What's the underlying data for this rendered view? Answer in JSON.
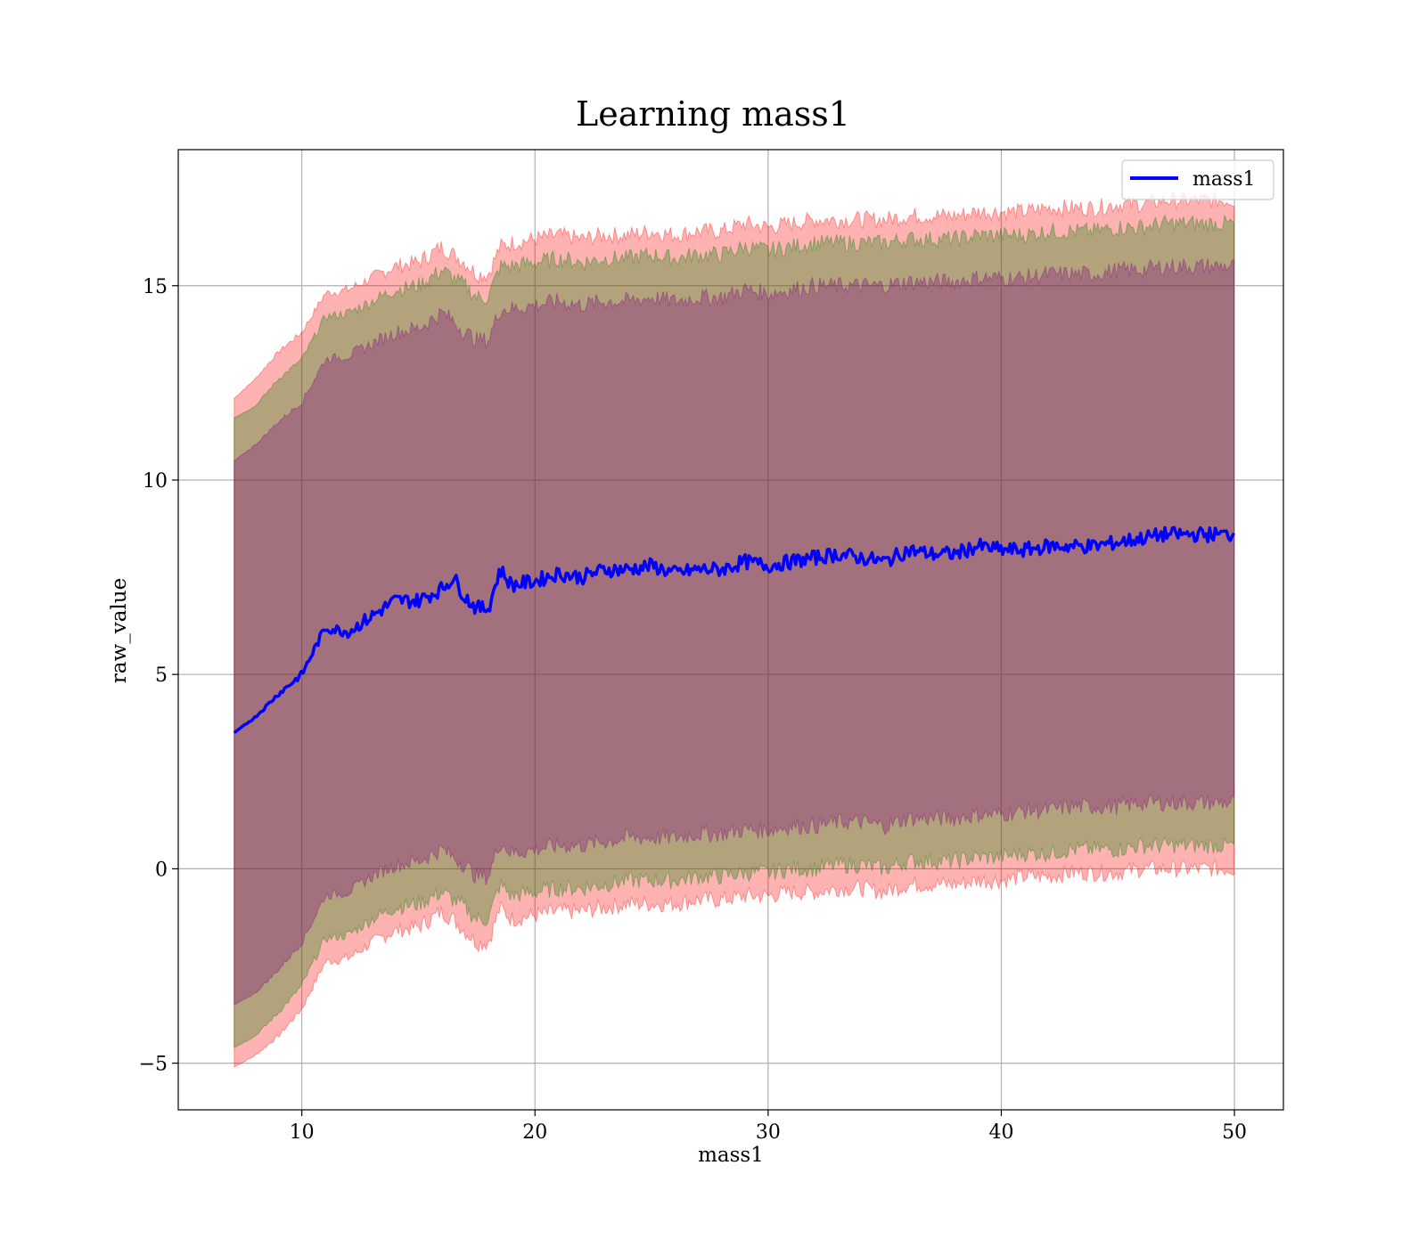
{
  "chart_data": {
    "type": "area",
    "title": "Learning mass1",
    "xlabel": "mass1",
    "ylabel": "raw_value",
    "xlim": [
      4.7,
      52.1
    ],
    "ylim": [
      -6.2,
      18.5
    ],
    "xticks": [
      10,
      20,
      30,
      40,
      50
    ],
    "yticks": [
      -5,
      0,
      5,
      10,
      15
    ],
    "xtick_labels": [
      "10",
      "20",
      "30",
      "40",
      "50"
    ],
    "ytick_labels": [
      "−5",
      "0",
      "5",
      "10",
      "15"
    ],
    "grid": true,
    "legend_position": "top-right",
    "x": [
      7.1,
      8,
      9,
      10,
      11,
      12,
      13,
      14,
      15,
      16,
      16.5,
      17,
      17.5,
      18,
      18.5,
      19,
      20,
      21,
      22,
      23,
      24,
      25,
      26,
      27,
      28,
      29,
      30,
      31,
      32,
      33,
      34,
      35,
      36,
      37,
      38,
      39,
      40,
      41,
      42,
      43,
      44,
      45,
      46,
      47,
      48,
      49,
      50
    ],
    "series": [
      {
        "name": "mass1",
        "color": "#0000ff",
        "values": [
          3.5,
          3.9,
          4.5,
          5.0,
          6.2,
          6.1,
          6.5,
          6.9,
          6.9,
          7.2,
          7.5,
          7.0,
          6.7,
          6.7,
          7.7,
          7.3,
          7.4,
          7.6,
          7.5,
          7.7,
          7.7,
          7.8,
          7.6,
          7.7,
          7.7,
          7.9,
          7.8,
          7.9,
          8.0,
          8.1,
          8.0,
          7.9,
          8.2,
          8.1,
          8.1,
          8.3,
          8.2,
          8.2,
          8.3,
          8.3,
          8.3,
          8.4,
          8.5,
          8.6,
          8.6,
          8.6,
          8.6
        ]
      }
    ],
    "bands": [
      {
        "color": "#ff0000",
        "opacity": 0.3,
        "upper": [
          12.1,
          12.6,
          13.3,
          13.8,
          14.8,
          14.9,
          15.2,
          15.5,
          15.6,
          16.0,
          15.8,
          15.6,
          15.3,
          15.3,
          16.0,
          16.1,
          16.2,
          16.3,
          16.2,
          16.3,
          16.3,
          16.4,
          16.3,
          16.4,
          16.4,
          16.6,
          16.5,
          16.6,
          16.7,
          16.7,
          16.7,
          16.7,
          16.8,
          16.8,
          16.8,
          16.9,
          16.9,
          16.9,
          17.0,
          17.0,
          17.0,
          17.1,
          17.1,
          17.2,
          17.2,
          17.2,
          17.2
        ],
        "lower": [
          -5.1,
          -4.8,
          -4.3,
          -3.6,
          -2.4,
          -2.3,
          -1.9,
          -1.6,
          -1.5,
          -1.1,
          -1.3,
          -1.6,
          -1.9,
          -1.9,
          -1.0,
          -1.3,
          -1.2,
          -1.1,
          -1.1,
          -1.0,
          -0.9,
          -0.9,
          -0.9,
          -0.8,
          -0.8,
          -0.7,
          -0.7,
          -0.6,
          -0.6,
          -0.5,
          -0.5,
          -0.6,
          -0.4,
          -0.4,
          -0.4,
          -0.3,
          -0.3,
          -0.2,
          -0.2,
          -0.1,
          -0.1,
          -0.1,
          0.0,
          0.0,
          0.0,
          0.0,
          0.0
        ]
      },
      {
        "color": "#008000",
        "opacity": 0.3,
        "upper": [
          11.6,
          11.9,
          12.6,
          13.1,
          14.2,
          14.3,
          14.6,
          14.9,
          15.0,
          15.4,
          15.2,
          15.0,
          14.7,
          14.7,
          15.5,
          15.5,
          15.6,
          15.7,
          15.6,
          15.7,
          15.7,
          15.8,
          15.7,
          15.8,
          15.8,
          16.0,
          15.9,
          16.0,
          16.1,
          16.1,
          16.1,
          16.1,
          16.2,
          16.2,
          16.2,
          16.3,
          16.3,
          16.3,
          16.4,
          16.4,
          16.4,
          16.5,
          16.5,
          16.6,
          16.6,
          16.6,
          16.6
        ],
        "lower": [
          -4.6,
          -4.3,
          -3.7,
          -3.0,
          -1.8,
          -1.7,
          -1.3,
          -1.0,
          -0.9,
          -0.6,
          -0.8,
          -1.0,
          -1.3,
          -1.3,
          -0.4,
          -0.7,
          -0.6,
          -0.5,
          -0.5,
          -0.4,
          -0.3,
          -0.3,
          -0.3,
          -0.2,
          -0.2,
          -0.1,
          -0.1,
          0.0,
          0.0,
          0.1,
          0.1,
          0.0,
          0.2,
          0.2,
          0.2,
          0.3,
          0.3,
          0.4,
          0.4,
          0.5,
          0.5,
          0.5,
          0.6,
          0.6,
          0.6,
          0.6,
          0.6
        ]
      },
      {
        "color": "#800080",
        "opacity": 0.3,
        "upper": [
          10.5,
          10.9,
          11.5,
          12.0,
          13.1,
          13.2,
          13.5,
          13.8,
          13.9,
          14.3,
          14.1,
          13.8,
          13.6,
          13.6,
          14.4,
          14.4,
          14.5,
          14.6,
          14.5,
          14.6,
          14.6,
          14.7,
          14.6,
          14.7,
          14.7,
          14.9,
          14.8,
          14.9,
          15.0,
          15.0,
          15.0,
          15.0,
          15.1,
          15.1,
          15.1,
          15.2,
          15.2,
          15.2,
          15.3,
          15.3,
          15.3,
          15.4,
          15.4,
          15.5,
          15.5,
          15.5,
          15.5
        ],
        "lower": [
          -3.5,
          -3.2,
          -2.6,
          -1.9,
          -0.7,
          -0.6,
          -0.2,
          0.1,
          0.2,
          0.5,
          0.3,
          0.1,
          -0.2,
          -0.2,
          0.7,
          0.4,
          0.5,
          0.6,
          0.6,
          0.7,
          0.8,
          0.8,
          0.8,
          0.9,
          0.9,
          1.0,
          1.0,
          1.1,
          1.1,
          1.2,
          1.2,
          1.1,
          1.3,
          1.3,
          1.3,
          1.4,
          1.4,
          1.5,
          1.5,
          1.6,
          1.6,
          1.6,
          1.7,
          1.7,
          1.7,
          1.7,
          1.7
        ]
      }
    ]
  }
}
